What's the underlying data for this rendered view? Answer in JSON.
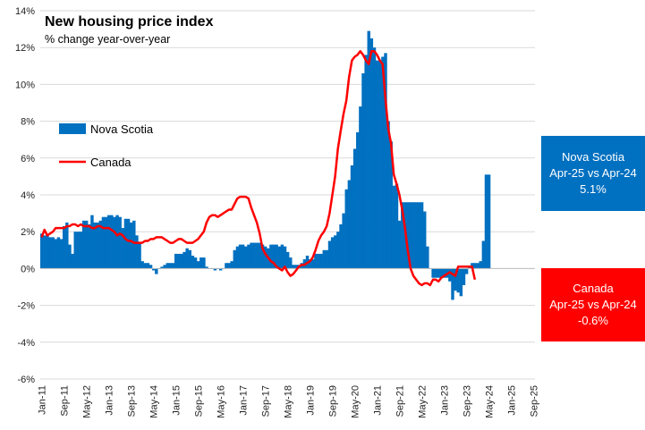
{
  "chart_data": {
    "type": "bar+line",
    "title": "New housing price index",
    "subtitle": "% change year-over-year",
    "y_ticks": [
      "14%",
      "12%",
      "10%",
      "8%",
      "6%",
      "4%",
      "2%",
      "0%",
      "-2%",
      "-4%",
      "-6%"
    ],
    "ylim": [
      -6,
      14
    ],
    "x_ticks": [
      "Jan-11",
      "Sep-11",
      "May-12",
      "Jan-13",
      "Sep-13",
      "May-14",
      "Jan-15",
      "Sep-15",
      "May-16",
      "Jan-17",
      "Sep-17",
      "May-18",
      "Jan-19",
      "Sep-19",
      "May-20",
      "Jan-21",
      "Sep-21",
      "May-22",
      "Jan-23",
      "Sep-23",
      "May-24",
      "Jan-25",
      "Sep-25"
    ],
    "x_start": "Jan-11",
    "x_end": "Sep-25",
    "legend": {
      "placement": "left-upper"
    },
    "series": [
      {
        "name": "Nova Scotia",
        "type": "bar",
        "color": "#0070C0",
        "values": [
          1.9,
          1.8,
          1.8,
          1.7,
          1.7,
          1.6,
          1.7,
          1.6,
          2.3,
          2.5,
          1.3,
          0.8,
          2.0,
          2.0,
          2.0,
          2.6,
          2.6,
          2.4,
          2.9,
          2.5,
          2.5,
          2.6,
          2.8,
          2.8,
          2.9,
          2.9,
          2.8,
          2.9,
          2.8,
          2.2,
          2.7,
          2.7,
          2.5,
          2.6,
          1.8,
          1.4,
          0.4,
          0.3,
          0.3,
          0.2,
          -0.1,
          -0.3,
          0.0,
          0.1,
          0.2,
          0.3,
          0.3,
          0.3,
          0.8,
          0.8,
          0.8,
          0.9,
          1.1,
          1.0,
          0.7,
          0.6,
          0.4,
          0.6,
          0.6,
          0.1,
          0.0,
          0.0,
          -0.1,
          0.0,
          -0.1,
          0.0,
          0.3,
          0.3,
          0.4,
          1.0,
          1.2,
          1.3,
          1.3,
          1.2,
          1.3,
          1.4,
          1.4,
          1.4,
          1.4,
          1.3,
          1.2,
          1.1,
          1.3,
          1.3,
          1.3,
          1.2,
          1.3,
          1.2,
          0.9,
          0.6,
          0.2,
          0.2,
          0.2,
          0.3,
          0.5,
          0.7,
          0.5,
          0.5,
          0.8,
          0.8,
          0.8,
          1.0,
          1.0,
          1.5,
          1.7,
          1.8,
          2.0,
          2.4,
          3.0,
          4.3,
          4.8,
          5.6,
          6.5,
          7.4,
          8.8,
          10.6,
          11.6,
          12.9,
          12.5,
          12.0,
          11.3,
          11.3,
          11.5,
          11.7,
          8.0,
          6.9,
          4.5,
          4.6,
          2.6,
          3.6,
          3.6,
          3.6,
          3.6,
          3.6,
          3.6,
          3.6,
          3.6,
          3.1,
          1.2,
          0.0,
          -0.5,
          -0.5,
          -0.5,
          -0.5,
          -0.5,
          -0.5,
          -0.7,
          -1.7,
          -1.2,
          -1.3,
          -1.5,
          -0.9,
          -0.3,
          0.1,
          0.3,
          0.3,
          0.3,
          0.4,
          1.5,
          5.1,
          5.1
        ]
      },
      {
        "name": "Canada",
        "type": "line",
        "color": "#FF0000",
        "values": [
          1.7,
          2.1,
          1.8,
          1.9,
          2.0,
          2.2,
          2.2,
          2.2,
          2.2,
          2.3,
          2.3,
          2.4,
          2.4,
          2.3,
          2.4,
          2.3,
          2.3,
          2.3,
          2.2,
          2.2,
          2.3,
          2.3,
          2.2,
          2.2,
          2.2,
          2.1,
          2.0,
          1.8,
          1.9,
          1.8,
          1.6,
          1.5,
          1.5,
          1.4,
          1.4,
          1.4,
          1.4,
          1.5,
          1.5,
          1.6,
          1.6,
          1.7,
          1.7,
          1.7,
          1.6,
          1.5,
          1.4,
          1.4,
          1.5,
          1.6,
          1.6,
          1.5,
          1.4,
          1.4,
          1.4,
          1.5,
          1.6,
          1.8,
          2.0,
          2.5,
          2.8,
          2.9,
          2.9,
          2.8,
          2.9,
          3.0,
          3.1,
          3.2,
          3.2,
          3.5,
          3.8,
          3.9,
          3.9,
          3.9,
          3.8,
          3.3,
          2.9,
          2.5,
          1.9,
          1.1,
          0.8,
          0.6,
          0.4,
          0.3,
          0.1,
          0.0,
          -0.1,
          0.1,
          -0.2,
          -0.4,
          -0.3,
          -0.1,
          0.1,
          0.2,
          0.2,
          0.3,
          0.4,
          0.6,
          1.0,
          1.5,
          1.8,
          2.0,
          2.3,
          3.0,
          4.0,
          5.0,
          6.5,
          7.5,
          8.4,
          9.1,
          10.4,
          11.3,
          11.5,
          11.6,
          11.8,
          11.6,
          11.3,
          11.1,
          11.8,
          11.8,
          11.6,
          11.3,
          11.1,
          9.2,
          7.6,
          6.8,
          5.1,
          4.6,
          4.0,
          3.2,
          2.2,
          1.0,
          0.0,
          -0.4,
          -0.6,
          -0.8,
          -0.9,
          -0.8,
          -0.8,
          -0.9,
          -0.6,
          -0.6,
          -0.7,
          -0.5,
          -0.4,
          -0.3,
          -0.2,
          -0.3,
          -0.4,
          0.1,
          0.1,
          0.1,
          0.1,
          0.1,
          0.1,
          -0.6
        ]
      }
    ]
  },
  "boxes": {
    "nova_scotia": {
      "line1": "Nova Scotia",
      "line2": "Apr-25 vs Apr-24",
      "line3": "5.1%",
      "color": "#0070C0"
    },
    "canada": {
      "line1": "Canada",
      "line2": "Apr-25 vs Apr-24",
      "line3": "-0.6%",
      "color": "#FF0000"
    }
  }
}
